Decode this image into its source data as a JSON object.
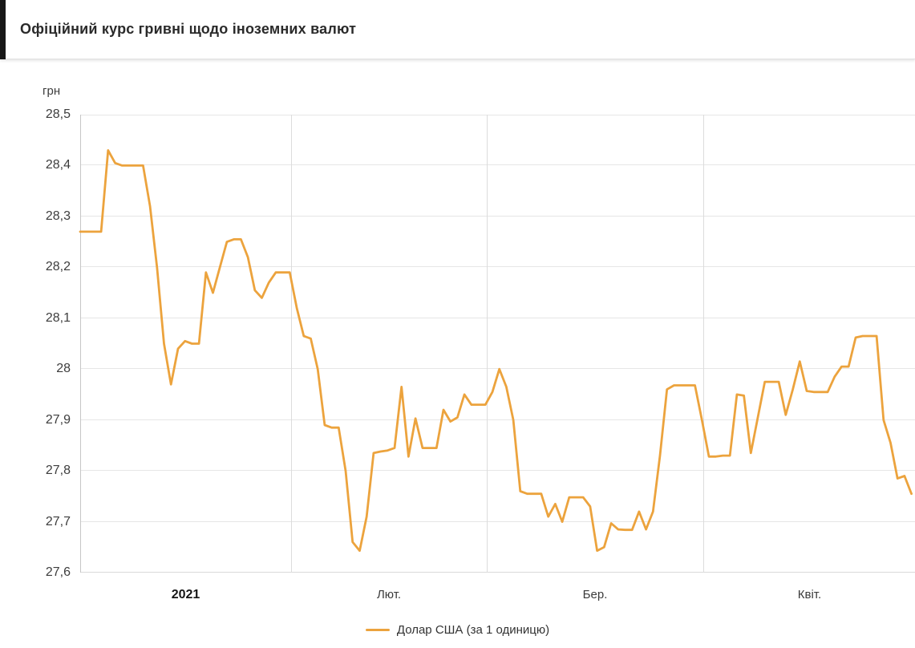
{
  "header": {
    "title": "Офіційний курс гривні щодо іноземних валют"
  },
  "chart_data": {
    "type": "line",
    "title": "Офіційний курс гривні щодо іноземних валют",
    "y_axis_title": "грн",
    "ylim": [
      27.6,
      28.5
    ],
    "ytick_step": 0.1,
    "ytick_labels": [
      "28,5",
      "28,4",
      "28,3",
      "28,2",
      "28,1",
      "28",
      "27,9",
      "27,8",
      "27,7",
      "27,6"
    ],
    "ytick_values": [
      28.5,
      28.4,
      28.3,
      28.2,
      28.1,
      28.0,
      27.9,
      27.8,
      27.7,
      27.6
    ],
    "grid": true,
    "legend_position": "bottom",
    "x_domain_days": [
      0,
      119.5
    ],
    "x_month_gridline_days": [
      30.2,
      58.2,
      89.2
    ],
    "x_tick_labels": [
      {
        "label": "2021",
        "day": 15.1,
        "bold": true
      },
      {
        "label": "Лют.",
        "day": 44.2,
        "bold": false
      },
      {
        "label": "Бер.",
        "day": 73.7,
        "bold": false
      },
      {
        "label": "Квіт.",
        "day": 104.4,
        "bold": false
      }
    ],
    "series": [
      {
        "name": "Долар США (за 1 одиницю)",
        "color": "#ECA33D",
        "values": [
          28.27,
          28.27,
          28.27,
          28.27,
          28.43,
          28.405,
          28.4,
          28.4,
          28.4,
          28.4,
          28.32,
          28.2,
          28.05,
          27.97,
          28.04,
          28.055,
          28.05,
          28.05,
          28.19,
          28.15,
          28.2,
          28.25,
          28.255,
          28.255,
          28.22,
          28.155,
          28.14,
          28.17,
          28.19,
          28.19,
          28.19,
          28.12,
          28.065,
          28.06,
          28.0,
          27.89,
          27.885,
          27.885,
          27.8,
          27.66,
          27.643,
          27.71,
          27.835,
          27.838,
          27.84,
          27.845,
          27.965,
          27.828,
          27.903,
          27.845,
          27.845,
          27.845,
          27.92,
          27.897,
          27.905,
          27.95,
          27.93,
          27.93,
          27.93,
          27.955,
          28.0,
          27.965,
          27.9,
          27.76,
          27.755,
          27.755,
          27.755,
          27.71,
          27.735,
          27.7,
          27.748,
          27.748,
          27.748,
          27.73,
          27.643,
          27.65,
          27.697,
          27.685,
          27.684,
          27.684,
          27.72,
          27.685,
          27.72,
          27.83,
          27.96,
          27.968,
          27.968,
          27.968,
          27.968,
          27.9,
          27.828,
          27.828,
          27.83,
          27.83,
          27.95,
          27.948,
          27.835,
          27.905,
          27.975,
          27.975,
          27.975,
          27.91,
          27.96,
          28.015,
          27.957,
          27.955,
          27.955,
          27.955,
          27.985,
          28.005,
          28.005,
          28.062,
          28.065,
          28.065,
          28.065,
          27.9,
          27.855,
          27.785,
          27.79,
          27.755
        ]
      }
    ],
    "colors": {
      "line": "#ECA33D",
      "h_gridline": "#e6e6e6",
      "v_gridline": "#dcdcdc",
      "y_axis_line": "#c6c6c6",
      "bottom_line": "#d9d9d9"
    }
  }
}
